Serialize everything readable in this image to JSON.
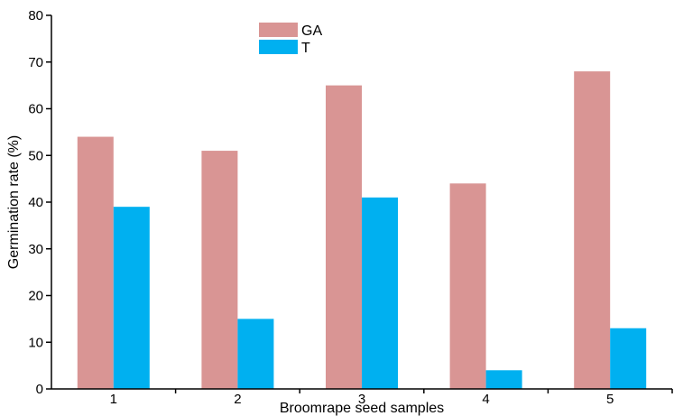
{
  "chart_data": {
    "type": "bar",
    "title": "",
    "xlabel": "Broomrape seed samples",
    "ylabel": "Germination rate (%)",
    "categories": [
      "1",
      "2",
      "3",
      "4",
      "5"
    ],
    "series": [
      {
        "name": "GA",
        "values": [
          54,
          51,
          65,
          44,
          68
        ],
        "color": "#d99594"
      },
      {
        "name": "T",
        "values": [
          39,
          15,
          41,
          4,
          13
        ],
        "color": "#00b0f0"
      }
    ],
    "ylim": [
      0,
      80
    ],
    "yticks": [
      "0",
      "10",
      "20",
      "30",
      "40",
      "50",
      "60",
      "70",
      "80"
    ],
    "grid": false,
    "legend_position": "top-left"
  }
}
